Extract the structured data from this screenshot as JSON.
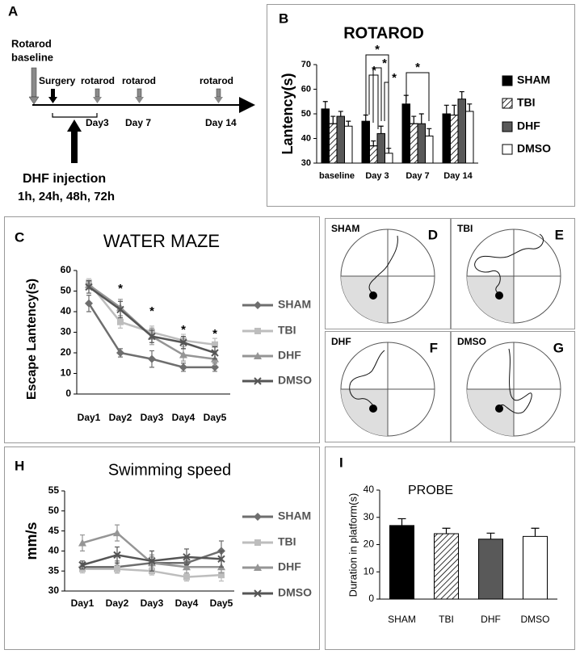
{
  "panel_a": {
    "panel": "A",
    "baseline_label": [
      "Rotarod",
      "baseline"
    ],
    "events": [
      "Surgery",
      "rotarod",
      "rotarod",
      "rotarod"
    ],
    "days": [
      "Day3",
      "Day 7",
      "Day 14"
    ],
    "injection": "DHF injection",
    "injection_times": "1h, 24h, 48h, 72h"
  },
  "maze_panels": [
    {
      "panel": "D",
      "label": "SHAM"
    },
    {
      "panel": "E",
      "label": "TBI"
    },
    {
      "panel": "F",
      "label": "DHF"
    },
    {
      "panel": "G",
      "label": "DMSO"
    }
  ],
  "chart_data": [
    {
      "panel": "B",
      "type": "bar",
      "title": "ROTAROD",
      "y_label": "Lantency(s)",
      "categories": [
        "baseline",
        "Day 3",
        "Day 7",
        "Day 14"
      ],
      "series": [
        {
          "name": "SHAM",
          "color": "#000000",
          "values": [
            52,
            47,
            54,
            50
          ],
          "errors": [
            3,
            2.5,
            3.5,
            3.5
          ]
        },
        {
          "name": "TBI",
          "color": "#ffffff",
          "hatch": true,
          "values": [
            46,
            37,
            46,
            49.5
          ],
          "errors": [
            3,
            2,
            3,
            4
          ]
        },
        {
          "name": "DHF",
          "color": "#595959",
          "values": [
            49,
            42,
            46,
            56
          ],
          "errors": [
            2,
            3,
            4,
            3
          ]
        },
        {
          "name": "DMSO",
          "color": "#ffffff",
          "values": [
            45,
            34,
            41,
            51
          ],
          "errors": [
            2,
            2,
            3,
            3
          ]
        }
      ],
      "ylim": [
        30,
        70
      ],
      "yticks": [
        30,
        40,
        50,
        60,
        70
      ],
      "annotations": [
        "*",
        "*",
        "*",
        "*",
        "*"
      ],
      "legend_position": "right",
      "grid": false
    },
    {
      "panel": "C",
      "type": "line",
      "title": "WATER MAZE",
      "y_label": "Escape Lantency(s)",
      "categories": [
        "Day1",
        "Day2",
        "Day3",
        "Day4",
        "Day5"
      ],
      "series": [
        {
          "name": "SHAM",
          "color": "#6e6e6e",
          "marker": "diamond",
          "values": [
            44,
            20,
            17,
            13,
            13
          ],
          "errors": [
            4,
            2,
            4,
            2,
            2
          ]
        },
        {
          "name": "TBI",
          "color": "#bdbdbd",
          "marker": "square",
          "values": [
            54,
            35,
            30,
            26,
            24
          ],
          "errors": [
            2,
            3,
            3,
            3,
            3
          ]
        },
        {
          "name": "DHF",
          "color": "#959595",
          "marker": "triangle",
          "values": [
            53,
            42,
            28,
            19,
            17
          ],
          "errors": [
            2,
            4,
            4,
            3,
            3
          ]
        },
        {
          "name": "DMSO",
          "color": "#555555",
          "marker": "x",
          "values": [
            52,
            41,
            28,
            25,
            20
          ],
          "errors": [
            3,
            4,
            3,
            3,
            3
          ]
        }
      ],
      "ylim": [
        0,
        60
      ],
      "yticks": [
        0,
        10,
        20,
        30,
        40,
        50,
        60
      ],
      "annotations": [
        "*",
        "*",
        "*",
        "*"
      ],
      "legend_position": "right",
      "grid": false
    },
    {
      "panel": "H",
      "type": "line",
      "title": "Swimming speed",
      "y_label": "mm/s",
      "categories": [
        "Day1",
        "Day2",
        "Day3",
        "Day4",
        "Day5"
      ],
      "series": [
        {
          "name": "SHAM",
          "color": "#6e6e6e",
          "marker": "diamond",
          "values": [
            36,
            36,
            37,
            37,
            40
          ],
          "errors": [
            1,
            1.5,
            1.5,
            1.5,
            2.5
          ]
        },
        {
          "name": "TBI",
          "color": "#bdbdbd",
          "marker": "square",
          "values": [
            35.5,
            35.5,
            35,
            33.5,
            34
          ],
          "errors": [
            1,
            1,
            1,
            1,
            1.5
          ]
        },
        {
          "name": "DHF",
          "color": "#959595",
          "marker": "triangle",
          "values": [
            42,
            44.5,
            37,
            36,
            36
          ],
          "errors": [
            2,
            2,
            2,
            1.5,
            1.5
          ]
        },
        {
          "name": "DMSO",
          "color": "#555555",
          "marker": "x",
          "values": [
            36.5,
            39,
            37.5,
            38.5,
            38
          ],
          "errors": [
            1,
            2,
            2.5,
            2,
            2
          ]
        }
      ],
      "ylim": [
        30,
        55
      ],
      "yticks": [
        30,
        35,
        40,
        45,
        50,
        55
      ],
      "legend_position": "right",
      "grid": false
    },
    {
      "panel": "I",
      "type": "bar",
      "title": "PROBE",
      "y_label": "Duration in platform(s)",
      "categories": [
        "SHAM",
        "TBI",
        "DHF",
        "DMSO"
      ],
      "values": [
        27,
        24,
        22,
        23
      ],
      "errors": [
        2.5,
        2,
        2.2,
        3
      ],
      "colors": [
        "#000000",
        "#ffffff",
        "#595959",
        "#ffffff"
      ],
      "hatched": [
        false,
        true,
        false,
        false
      ],
      "ylim": [
        0,
        40
      ],
      "yticks": [
        0,
        10,
        20,
        30,
        40
      ],
      "grid": false
    }
  ]
}
